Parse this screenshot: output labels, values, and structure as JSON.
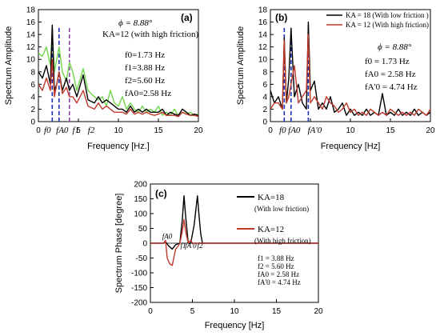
{
  "colors": {
    "black": "#000000",
    "red": "#c0392b",
    "green": "#6fd64a",
    "blue": "#1f2fb8",
    "purple": "#8e44ad"
  },
  "chart_data": [
    {
      "type": "line",
      "panel_label": "(a)",
      "xlabel": "Frequency [Hz.]",
      "ylabel": "Spectrum Amplitude",
      "xlim": [
        0,
        20
      ],
      "ylim": [
        0,
        18
      ],
      "xticks": [
        "0",
        "5",
        "10",
        "15",
        "20"
      ],
      "yticks": [
        "0",
        "2",
        "4",
        "6",
        "8",
        "10",
        "12",
        "14",
        "16",
        "18"
      ],
      "grid": false,
      "annotations": {
        "phi": "ϕ = 8.88°",
        "ka": "KA=12 (with high friction)",
        "f0": "f0=1.73 Hz",
        "f1": "f1=3.88 Hz",
        "f2": "f2=5.60 Hz",
        "fa0": "fA0=2.58 Hz"
      },
      "xaxis_freq_labels": [
        "f0",
        "fA0",
        "f1",
        "f2"
      ],
      "xaxis_freq_positions": [
        1.73,
        2.58,
        3.88,
        5.6
      ],
      "series": [
        {
          "color": "green",
          "x": [
            0,
            0.5,
            1,
            1.5,
            1.73,
            2,
            2.3,
            2.58,
            3,
            3.5,
            3.88,
            4.3,
            4.8,
            5.6,
            6.2,
            7,
            7.5,
            8,
            8.5,
            9,
            9.5,
            10,
            10.5,
            11,
            11.5,
            12,
            12.5,
            13,
            13.5,
            14,
            14.5,
            15,
            15.5,
            16,
            16.5,
            17,
            17.5,
            18,
            18.5,
            19,
            19.5,
            20
          ],
          "y": [
            11,
            10.5,
            12,
            9,
            14.5,
            8,
            10,
            12,
            8,
            6.5,
            9.5,
            8,
            5,
            8.5,
            5,
            4,
            3.5,
            4,
            2.5,
            5,
            3,
            2.5,
            4,
            2,
            3,
            2,
            1.5,
            2.5,
            1.5,
            2,
            1.5,
            2.5,
            1,
            1.5,
            1,
            2,
            1,
            1.5,
            1.2,
            1.5,
            1,
            1.2
          ]
        },
        {
          "color": "black",
          "x": [
            0,
            0.5,
            1,
            1.5,
            1.73,
            2,
            2.3,
            2.58,
            3,
            3.5,
            3.88,
            4.3,
            4.8,
            5.6,
            6.2,
            7,
            7.5,
            8,
            8.5,
            9,
            9.5,
            10,
            10.5,
            11,
            11.5,
            12,
            12.5,
            13,
            13.5,
            14,
            14.5,
            15,
            15.5,
            16,
            16.5,
            17,
            17.5,
            18,
            18.5,
            19,
            19.5,
            20
          ],
          "y": [
            8,
            7,
            9,
            6,
            15.5,
            5,
            6,
            8,
            5,
            7,
            5,
            6,
            4,
            7.5,
            3.5,
            3,
            4,
            3,
            3.5,
            3,
            2.5,
            2,
            2,
            1.5,
            2.5,
            1.5,
            2,
            1.5,
            2,
            1.5,
            1.5,
            1.5,
            2,
            1,
            1.5,
            1.2,
            1,
            2,
            1.5,
            1,
            1.2,
            1
          ]
        },
        {
          "color": "red",
          "x": [
            0,
            0.5,
            1,
            1.5,
            1.73,
            2,
            2.3,
            2.58,
            3,
            3.5,
            3.88,
            4.3,
            4.8,
            5.6,
            6.2,
            7,
            7.5,
            8,
            8.5,
            9,
            9.5,
            10,
            10.5,
            11,
            11.5,
            12,
            12.5,
            13,
            13.5,
            14,
            14.5,
            15,
            15.5,
            16,
            16.5,
            17,
            17.5,
            18,
            18.5,
            19,
            19.5,
            20
          ],
          "y": [
            6,
            5,
            7,
            5,
            10,
            4,
            6,
            8,
            4.5,
            5.5,
            4,
            4,
            3,
            5,
            2.5,
            2,
            3,
            2,
            2.5,
            2,
            1.5,
            1.5,
            1.5,
            1.2,
            2,
            1.2,
            1.5,
            1.2,
            1.5,
            1.2,
            1,
            1.2,
            1.5,
            1,
            1,
            1,
            0.8,
            1.5,
            1.2,
            1,
            1,
            0.8
          ]
        }
      ],
      "vlines": [
        {
          "x": 1.73,
          "color": "blue"
        },
        {
          "x": 2.58,
          "color": "blue"
        },
        {
          "x": 3.88,
          "color": "purple"
        }
      ]
    },
    {
      "type": "line",
      "panel_label": "(b)",
      "xlabel": "Frequency [Hz]",
      "ylabel": "Spectrum Amplitude",
      "xlim": [
        0,
        20
      ],
      "ylim": [
        0,
        18
      ],
      "xticks": [
        "0",
        "",
        "10",
        "15",
        "20"
      ],
      "yticks": [
        "0",
        "2",
        "4",
        "6",
        "8",
        "10",
        "12",
        "14",
        "16",
        "18"
      ],
      "grid": false,
      "legend": [
        {
          "name": "KA = 18 (With low friction )",
          "color": "black"
        },
        {
          "name": "KA = 12 (With high friction)",
          "color": "red"
        }
      ],
      "annotations": {
        "phi": "ϕ = 8.88°",
        "f0": "f0 = 1.73 Hz",
        "fa0": "fA0 = 2.58 Hz",
        "fa0p": "fA'0 = 4.74 Hz"
      },
      "xaxis_freq_labels": [
        "f0",
        "fA0",
        "fA'0"
      ],
      "xaxis_freq_positions": [
        1.73,
        2.58,
        4.74
      ],
      "series": [
        {
          "color": "black",
          "x": [
            0,
            0.5,
            1,
            1.5,
            1.73,
            2,
            2.3,
            2.58,
            3,
            3.5,
            4,
            4.5,
            4.74,
            5,
            5.5,
            6,
            6.5,
            7,
            7.5,
            8,
            8.5,
            9,
            9.5,
            10,
            10.5,
            11,
            11.5,
            12,
            12.5,
            13,
            13.5,
            14,
            14.5,
            15,
            15.5,
            16,
            16.5,
            17,
            17.5,
            18,
            18.5,
            19,
            19.5,
            20
          ],
          "y": [
            5,
            3,
            4,
            2,
            13.5,
            3,
            7,
            15,
            4,
            6,
            3,
            2,
            16,
            5,
            6.5,
            2,
            3,
            2,
            4,
            1.5,
            2,
            3,
            1,
            2,
            1,
            1.5,
            1,
            2,
            1,
            1.5,
            1,
            4.5,
            1,
            1.5,
            1,
            2,
            1,
            1.5,
            1,
            2,
            1,
            1.5,
            1,
            1.5
          ]
        },
        {
          "color": "red",
          "x": [
            0,
            0.5,
            1,
            1.5,
            1.73,
            2,
            2.3,
            2.58,
            3,
            3.5,
            4,
            4.5,
            4.74,
            5,
            5.5,
            6,
            6.5,
            7,
            7.5,
            8,
            8.5,
            9,
            9.5,
            10,
            10.5,
            11,
            11.5,
            12,
            12.5,
            13,
            13.5,
            14,
            14.5,
            15,
            15.5,
            16,
            16.5,
            17,
            17.5,
            18,
            18.5,
            19,
            19.5,
            20
          ],
          "y": [
            2,
            3,
            3,
            2,
            13,
            3,
            4,
            6,
            9,
            3,
            4,
            5,
            14,
            3,
            4,
            3,
            2,
            4,
            3,
            2.5,
            1.5,
            2,
            3,
            1.5,
            2,
            1,
            1.5,
            1,
            2,
            1.5,
            1,
            1.5,
            1,
            2,
            1.5,
            1,
            1.5,
            1,
            1.5,
            1,
            2,
            1.5,
            1,
            2
          ]
        }
      ],
      "vlines": [
        {
          "x": 1.73,
          "color": "blue"
        },
        {
          "x": 2.58,
          "color": "blue"
        },
        {
          "x": 4.74,
          "color": "blue"
        }
      ]
    },
    {
      "type": "line",
      "panel_label": "(c)",
      "xlabel": "Frequency [Hz]",
      "ylabel": "Spectrum Phase [degree]",
      "xlim": [
        0,
        20
      ],
      "ylim": [
        -200,
        200
      ],
      "xticks": [
        "0",
        "5",
        "10",
        "15",
        "20"
      ],
      "yticks": [
        "-200",
        "-150",
        "-100",
        "-50",
        "0",
        "50",
        "100",
        "150",
        "200"
      ],
      "grid": false,
      "legend": [
        {
          "name": "KA=18",
          "sub": "(With low friction)",
          "color": "black"
        },
        {
          "name": "KA=12",
          "sub": "(With high friction)",
          "color": "red"
        }
      ],
      "annotations": {
        "f1": "f1 = 3.88 Hz",
        "f2": "f2 = 5.60 Hz",
        "fa0": "fA0 = 2.58 Hz",
        "fa0p": "fA'0 = 4.74 Hz",
        "peak_fa0": "fA0",
        "peak_f1": "f1",
        "peak_fa0p": "fA'0",
        "peak_f2": "f2"
      },
      "series": [
        {
          "color": "black",
          "x": [
            0,
            1.5,
            1.8,
            2.2,
            2.6,
            3.0,
            3.5,
            3.8,
            4.0,
            4.2,
            4.5,
            4.8,
            5.2,
            5.6,
            5.8,
            6.0,
            6.2,
            6.5,
            20
          ],
          "y": [
            0,
            0,
            5,
            -10,
            -20,
            -5,
            0,
            80,
            160,
            90,
            0,
            0,
            60,
            160,
            90,
            30,
            0,
            0,
            0
          ]
        },
        {
          "color": "red",
          "x": [
            0,
            1.6,
            1.8,
            2.0,
            2.3,
            2.6,
            3.0,
            3.3,
            3.5,
            3.8,
            4.0,
            4.2,
            4.5,
            4.8,
            5.0,
            20
          ],
          "y": [
            0,
            0,
            10,
            -50,
            -70,
            -75,
            -20,
            -10,
            0,
            40,
            80,
            40,
            0,
            10,
            0,
            0
          ]
        }
      ]
    }
  ]
}
